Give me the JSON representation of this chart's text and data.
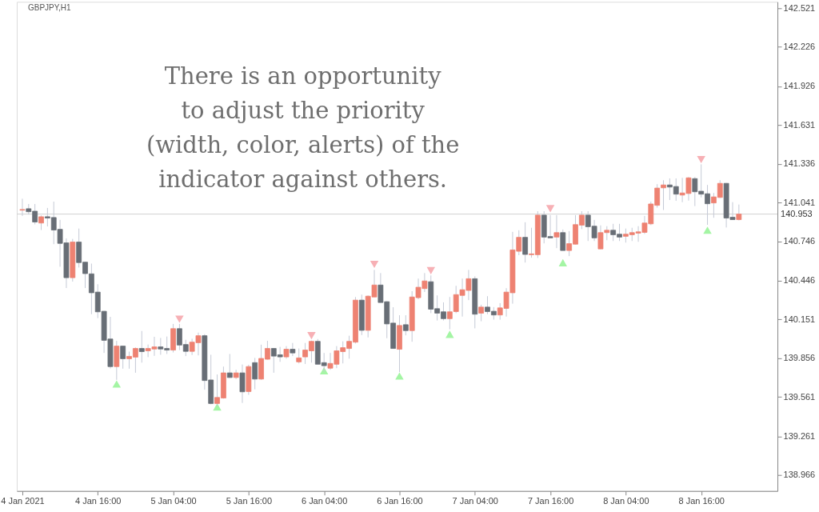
{
  "chart_data": {
    "type": "candlestick",
    "title": "GBPJPY,H1",
    "annotations": [
      "There is an opportunity\nto adjust the priority\n(width, color, alerts) of the\nindicator against others."
    ],
    "xlim": [
      "2021-01-04T03:45",
      "2021-01-09T03:30"
    ],
    "xticks": [
      {
        "value": "2021-01-04T04:00",
        "label": "4 Jan 2021"
      },
      {
        "value": "2021-01-04T16:00",
        "label": "4 Jan 16:00"
      },
      {
        "value": "2021-01-05T04:00",
        "label": "5 Jan 04:00"
      },
      {
        "value": "2021-01-05T16:00",
        "label": "5 Jan 16:00"
      },
      {
        "value": "2021-01-06T04:00",
        "label": "6 Jan 04:00"
      },
      {
        "value": "2021-01-06T16:00",
        "label": "6 Jan 16:00"
      },
      {
        "value": "2021-01-07T04:00",
        "label": "7 Jan 04:00"
      },
      {
        "value": "2021-01-07T16:00",
        "label": "7 Jan 16:00"
      },
      {
        "value": "2021-01-08T04:00",
        "label": "8 Jan 04:00"
      },
      {
        "value": "2021-01-08T16:00",
        "label": "8 Jan 16:00"
      }
    ],
    "ylim": [
      138.845,
      142.569
    ],
    "yticks": [
      138.966,
      139.261,
      139.561,
      139.856,
      140.151,
      140.446,
      140.746,
      141.041,
      141.336,
      141.631,
      141.926,
      142.226,
      142.521
    ],
    "grid": false,
    "ref_lines": [
      {
        "axis": "y",
        "value": 140.953,
        "label": "140.953",
        "color": "#d0d0d0"
      }
    ],
    "series": [
      {
        "color": "#c5cad6",
        "x": [
          "2021-01-04T04:00",
          "2021-01-04T05:00",
          "2021-01-04T06:00",
          "2021-01-04T07:00",
          "2021-01-04T08:00",
          "2021-01-04T09:00",
          "2021-01-04T10:00",
          "2021-01-04T11:00",
          "2021-01-04T12:00",
          "2021-01-04T13:00",
          "2021-01-04T14:00",
          "2021-01-04T15:00",
          "2021-01-04T16:00",
          "2021-01-04T17:00",
          "2021-01-04T18:00",
          "2021-01-04T19:00",
          "2021-01-04T20:00",
          "2021-01-04T21:00",
          "2021-01-04T22:00",
          "2021-01-04T23:00",
          "2021-01-05T00:00",
          "2021-01-05T01:00",
          "2021-01-05T02:00",
          "2021-01-05T03:00",
          "2021-01-05T04:00",
          "2021-01-05T05:00",
          "2021-01-05T06:00",
          "2021-01-05T07:00",
          "2021-01-05T08:00",
          "2021-01-05T09:00",
          "2021-01-05T10:00",
          "2021-01-05T11:00",
          "2021-01-05T12:00",
          "2021-01-05T13:00",
          "2021-01-05T14:00",
          "2021-01-05T15:00",
          "2021-01-05T16:00",
          "2021-01-05T17:00",
          "2021-01-05T18:00",
          "2021-01-05T19:00",
          "2021-01-05T20:00",
          "2021-01-05T21:00",
          "2021-01-05T22:00",
          "2021-01-05T23:00",
          "2021-01-06T00:00",
          "2021-01-06T01:00",
          "2021-01-06T02:00",
          "2021-01-06T03:00",
          "2021-01-06T04:00",
          "2021-01-06T05:00",
          "2021-01-06T06:00",
          "2021-01-06T07:00",
          "2021-01-06T08:00",
          "2021-01-06T09:00",
          "2021-01-06T10:00",
          "2021-01-06T11:00",
          "2021-01-06T12:00",
          "2021-01-06T13:00",
          "2021-01-06T14:00",
          "2021-01-06T15:00",
          "2021-01-06T16:00",
          "2021-01-06T17:00",
          "2021-01-06T18:00",
          "2021-01-06T19:00",
          "2021-01-06T20:00",
          "2021-01-06T21:00",
          "2021-01-06T22:00",
          "2021-01-06T23:00",
          "2021-01-07T00:00",
          "2021-01-07T01:00",
          "2021-01-07T02:00",
          "2021-01-07T03:00",
          "2021-01-07T04:00",
          "2021-01-07T05:00",
          "2021-01-07T06:00",
          "2021-01-07T07:00",
          "2021-01-07T08:00",
          "2021-01-07T09:00",
          "2021-01-07T10:00",
          "2021-01-07T11:00",
          "2021-01-07T12:00",
          "2021-01-07T13:00",
          "2021-01-07T14:00",
          "2021-01-07T15:00",
          "2021-01-07T16:00",
          "2021-01-07T17:00",
          "2021-01-07T18:00",
          "2021-01-07T19:00",
          "2021-01-07T20:00",
          "2021-01-07T21:00",
          "2021-01-07T22:00",
          "2021-01-07T23:00",
          "2021-01-08T00:00",
          "2021-01-08T01:00",
          "2021-01-08T02:00",
          "2021-01-08T03:00",
          "2021-01-08T04:00",
          "2021-01-08T05:00",
          "2021-01-08T06:00",
          "2021-01-08T07:00",
          "2021-01-08T08:00",
          "2021-01-08T09:00",
          "2021-01-08T10:00",
          "2021-01-08T11:00",
          "2021-01-08T12:00",
          "2021-01-08T13:00",
          "2021-01-08T14:00",
          "2021-01-08T15:00",
          "2021-01-08T16:00",
          "2021-01-08T17:00",
          "2021-01-08T18:00",
          "2021-01-08T19:00",
          "2021-01-08T20:00",
          "2021-01-08T21:00",
          "2021-01-08T22:00"
        ],
        "ohlc": [
          [
            140.983,
            141.07,
            140.939,
            140.988
          ],
          [
            140.994,
            141.03,
            140.95,
            140.971
          ],
          [
            140.975,
            141.03,
            140.875,
            140.893
          ],
          [
            140.885,
            140.943,
            140.832,
            140.933
          ],
          [
            140.933,
            141.0,
            140.859,
            140.923
          ],
          [
            140.927,
            141.048,
            140.724,
            140.832
          ],
          [
            140.837,
            140.909,
            140.552,
            140.73
          ],
          [
            140.734,
            140.768,
            140.39,
            140.469
          ],
          [
            140.469,
            140.764,
            140.439,
            140.74
          ],
          [
            140.74,
            140.843,
            140.546,
            140.584
          ],
          [
            140.587,
            140.59,
            140.39,
            140.5
          ],
          [
            140.498,
            140.576,
            140.191,
            140.354
          ],
          [
            140.359,
            140.419,
            140.161,
            140.209
          ],
          [
            140.213,
            140.216,
            139.896,
            139.992
          ],
          [
            140.002,
            140.171,
            139.778,
            139.792
          ],
          [
            139.792,
            139.988,
            139.691,
            139.948
          ],
          [
            139.948,
            139.95,
            139.776,
            139.852
          ],
          [
            139.852,
            139.906,
            139.776,
            139.87
          ],
          [
            139.864,
            139.938,
            139.745,
            139.93
          ],
          [
            139.93,
            140.063,
            139.822,
            139.906
          ],
          [
            139.912,
            139.96,
            139.864,
            139.93
          ],
          [
            139.926,
            140.019,
            139.874,
            139.942
          ],
          [
            139.942,
            140.01,
            139.882,
            139.926
          ],
          [
            139.93,
            140.021,
            139.888,
            139.918
          ],
          [
            139.918,
            140.117,
            139.9,
            140.081
          ],
          [
            140.081,
            140.117,
            139.918,
            139.956
          ],
          [
            139.96,
            139.996,
            139.872,
            139.908
          ],
          [
            139.908,
            140.004,
            139.88,
            139.978
          ],
          [
            139.974,
            140.051,
            139.877,
            140.027
          ],
          [
            140.027,
            140.039,
            139.616,
            139.686
          ],
          [
            139.69,
            139.882,
            139.505,
            139.511
          ],
          [
            139.511,
            139.732,
            139.491,
            139.557
          ],
          [
            139.553,
            139.792,
            139.548,
            139.744
          ],
          [
            139.744,
            139.888,
            139.707,
            139.709
          ],
          [
            139.709,
            139.768,
            139.697,
            139.744
          ],
          [
            139.744,
            139.808,
            139.515,
            139.6
          ],
          [
            139.602,
            139.806,
            139.577,
            139.792
          ],
          [
            139.822,
            139.858,
            139.619,
            139.697
          ],
          [
            139.697,
            139.959,
            139.691,
            139.854
          ],
          [
            139.848,
            139.988,
            139.845,
            139.93
          ],
          [
            139.93,
            139.932,
            139.745,
            139.872
          ],
          [
            139.882,
            139.942,
            139.828,
            139.866
          ],
          [
            139.866,
            139.948,
            139.852,
            139.924
          ],
          [
            139.924,
            139.972,
            139.872,
            139.896
          ],
          [
            139.828,
            139.93,
            139.816,
            139.858
          ],
          [
            139.866,
            139.972,
            139.812,
            139.918
          ],
          [
            139.912,
            139.99,
            139.822,
            139.984
          ],
          [
            139.984,
            140.002,
            139.81,
            139.81
          ],
          [
            139.822,
            139.896,
            139.753,
            139.799
          ],
          [
            139.78,
            139.896,
            139.768,
            139.816
          ],
          [
            139.81,
            139.948,
            139.78,
            139.912
          ],
          [
            139.906,
            139.984,
            139.816,
            139.936
          ],
          [
            139.93,
            140.027,
            139.852,
            139.984
          ],
          [
            139.978,
            140.322,
            139.968,
            140.298
          ],
          [
            140.298,
            140.34,
            140.032,
            140.068
          ],
          [
            140.068,
            140.334,
            140.014,
            140.328
          ],
          [
            140.322,
            140.528,
            140.32,
            140.413
          ],
          [
            140.413,
            140.504,
            140.28,
            140.28
          ],
          [
            140.286,
            140.29,
            140.008,
            140.117
          ],
          [
            140.123,
            140.244,
            139.93,
            139.93
          ],
          [
            139.924,
            140.183,
            139.75,
            140.105
          ],
          [
            140.111,
            140.183,
            140.03,
            140.066
          ],
          [
            140.066,
            140.366,
            139.981,
            140.322
          ],
          [
            140.317,
            140.462,
            140.305,
            140.396
          ],
          [
            140.386,
            140.504,
            140.36,
            140.444
          ],
          [
            140.438,
            140.486,
            140.199,
            140.229
          ],
          [
            140.233,
            140.334,
            140.143,
            140.199
          ],
          [
            140.209,
            140.281,
            140.143,
            140.157
          ],
          [
            140.157,
            140.322,
            140.076,
            140.209
          ],
          [
            140.211,
            140.407,
            140.199,
            140.34
          ],
          [
            140.334,
            140.462,
            140.173,
            140.377
          ],
          [
            140.372,
            140.528,
            140.298,
            140.461
          ],
          [
            140.461,
            140.479,
            140.083,
            140.191
          ],
          [
            140.199,
            140.263,
            140.137,
            140.245
          ],
          [
            140.245,
            140.328,
            140.191,
            140.211
          ],
          [
            140.213,
            140.245,
            140.149,
            140.185
          ],
          [
            140.185,
            140.275,
            140.149,
            140.239
          ],
          [
            140.235,
            140.389,
            140.173,
            140.359
          ],
          [
            140.354,
            140.818,
            140.271,
            140.68
          ],
          [
            140.67,
            140.83,
            140.64,
            140.776
          ],
          [
            140.776,
            140.891,
            140.584,
            140.646
          ],
          [
            140.644,
            140.849,
            140.621,
            140.65
          ],
          [
            140.644,
            140.975,
            140.619,
            140.945
          ],
          [
            140.945,
            140.975,
            140.73,
            140.778
          ],
          [
            140.782,
            140.945,
            140.772,
            140.772
          ],
          [
            140.778,
            140.945,
            140.694,
            140.812
          ],
          [
            140.812,
            140.836,
            140.676,
            140.676
          ],
          [
            140.676,
            140.824,
            140.633,
            140.728
          ],
          [
            140.724,
            140.945,
            140.722,
            140.873
          ],
          [
            140.869,
            140.975,
            140.839,
            140.945
          ],
          [
            140.945,
            140.975,
            140.748,
            140.857
          ],
          [
            140.861,
            140.909,
            140.748,
            140.772
          ],
          [
            140.688,
            140.867,
            140.686,
            140.812
          ],
          [
            140.812,
            140.861,
            140.754,
            140.83
          ],
          [
            140.83,
            140.879,
            140.748,
            140.796
          ],
          [
            140.8,
            140.879,
            140.748,
            140.778
          ],
          [
            140.784,
            140.843,
            140.736,
            140.8
          ],
          [
            140.796,
            140.849,
            140.748,
            140.812
          ],
          [
            140.808,
            140.861,
            140.742,
            140.818
          ],
          [
            140.814,
            140.939,
            140.802,
            140.885
          ],
          [
            140.879,
            141.048,
            140.869,
            141.03
          ],
          [
            141.02,
            141.181,
            141.002,
            141.151
          ],
          [
            141.153,
            141.211,
            140.984,
            141.175
          ],
          [
            141.175,
            141.225,
            141.06,
            141.159
          ],
          [
            141.163,
            141.225,
            141.054,
            141.105
          ],
          [
            141.098,
            141.229,
            141.044,
            141.114
          ],
          [
            141.11,
            141.235,
            141.056,
            141.229
          ],
          [
            141.223,
            141.235,
            141.014,
            141.123
          ],
          [
            141.127,
            141.332,
            141.08,
            141.105
          ],
          [
            141.108,
            141.175,
            140.871,
            141.032
          ],
          [
            141.038,
            141.114,
            140.925,
            141.084
          ],
          [
            141.08,
            141.211,
            141.076,
            141.187
          ],
          [
            141.187,
            141.19,
            140.851,
            140.923
          ],
          [
            140.929,
            141.044,
            140.911,
            140.911
          ],
          [
            140.911,
            141.026,
            140.905,
            140.953
          ]
        ],
        "colors": [
          "#ee8272",
          "#686e76",
          "#686e76",
          "#ee8272",
          "#686e76",
          "#686e76",
          "#686e76",
          "#686e76",
          "#ee8272",
          "#686e76",
          "#686e76",
          "#686e76",
          "#686e76",
          "#686e76",
          "#686e76",
          "#ee8272",
          "#686e76",
          "#ee8272",
          "#ee8272",
          "#686e76",
          "#ee8272",
          "#ee8272",
          "#686e76",
          "#686e76",
          "#ee8272",
          "#686e76",
          "#686e76",
          "#ee8272",
          "#ee8272",
          "#686e76",
          "#686e76",
          "#ee8272",
          "#ee8272",
          "#686e76",
          "#ee8272",
          "#686e76",
          "#ee8272",
          "#686e76",
          "#ee8272",
          "#ee8272",
          "#686e76",
          "#686e76",
          "#ee8272",
          "#686e76",
          "#ee8272",
          "#ee8272",
          "#ee8272",
          "#686e76",
          "#686e76",
          "#ee8272",
          "#ee8272",
          "#ee8272",
          "#ee8272",
          "#ee8272",
          "#686e76",
          "#ee8272",
          "#ee8272",
          "#686e76",
          "#686e76",
          "#686e76",
          "#ee8272",
          "#686e76",
          "#ee8272",
          "#ee8272",
          "#ee8272",
          "#686e76",
          "#686e76",
          "#686e76",
          "#ee8272",
          "#ee8272",
          "#ee8272",
          "#ee8272",
          "#686e76",
          "#ee8272",
          "#686e76",
          "#686e76",
          "#ee8272",
          "#ee8272",
          "#ee8272",
          "#ee8272",
          "#686e76",
          "#ee8272",
          "#ee8272",
          "#686e76",
          "#686e76",
          "#ee8272",
          "#686e76",
          "#ee8272",
          "#ee8272",
          "#ee8272",
          "#686e76",
          "#686e76",
          "#ee8272",
          "#ee8272",
          "#686e76",
          "#686e76",
          "#ee8272",
          "#ee8272",
          "#ee8272",
          "#ee8272",
          "#ee8272",
          "#ee8272",
          "#ee8272",
          "#686e76",
          "#686e76",
          "#ee8272",
          "#ee8272",
          "#686e76",
          "#686e76",
          "#686e76",
          "#ee8272",
          "#ee8272",
          "#686e76",
          "#686e76",
          "#ee8272"
        ]
      },
      {
        "type": "scatter",
        "marker": "triangle",
        "color": "#a4f5a4",
        "x": [
          "2021-01-04T19:00",
          "2021-01-05T11:00",
          "2021-01-06T04:00",
          "2021-01-06T16:00",
          "2021-01-07T00:00",
          "2021-01-07T18:00",
          "2021-01-08T17:00"
        ],
        "values": [
          139.659,
          139.485,
          139.76,
          139.72,
          140.038,
          140.583,
          140.83
        ]
      },
      {
        "type": "scatter",
        "marker": "triangle-down",
        "color": "#f7b0b5",
        "x": [
          "2021-01-05T05:00",
          "2021-01-06T02:00",
          "2021-01-06T12:00",
          "2021-01-06T21:00",
          "2021-01-07T16:00",
          "2021-01-08T16:00"
        ],
        "values": [
          140.153,
          140.027,
          140.57,
          140.522,
          140.994,
          141.368
        ]
      }
    ]
  }
}
